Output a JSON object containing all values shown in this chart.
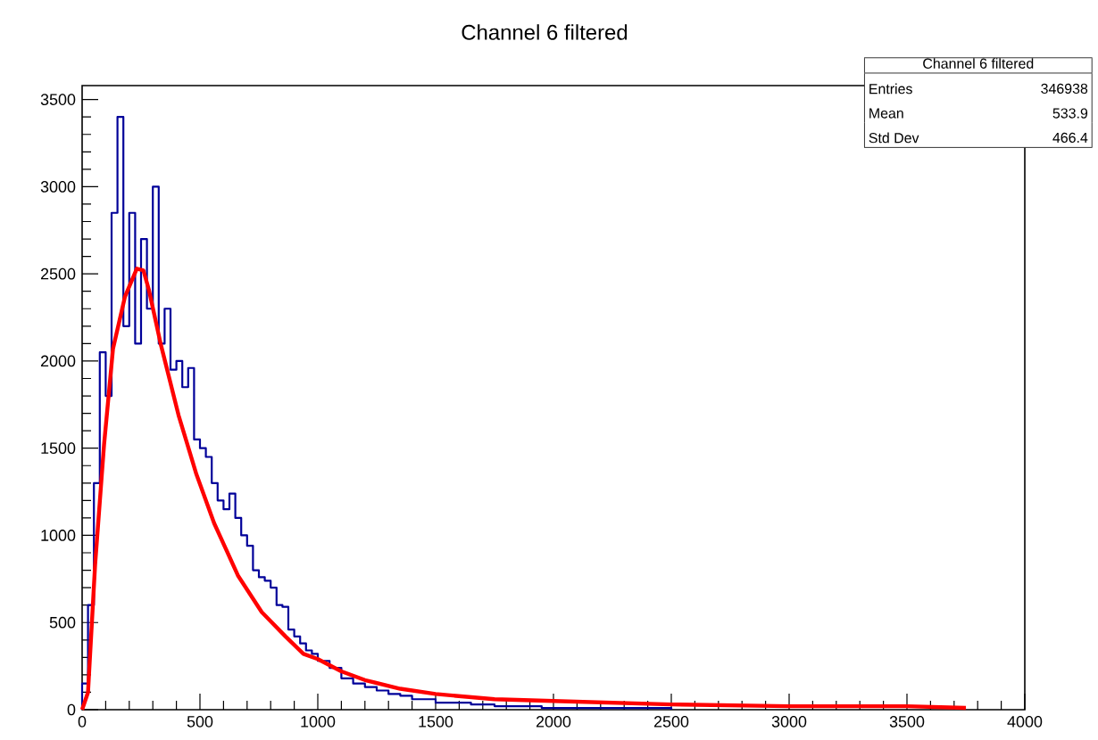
{
  "chart_data": {
    "type": "histogram",
    "title": "Channel 6 filtered",
    "annotations": [
      "Channel 6 filtered",
      "Entries",
      "346938",
      "Mean",
      "533.9",
      "Std Dev",
      "466.4"
    ],
    "series": [
      {
        "color": "#000099",
        "bins": [
          0,
          25,
          50,
          75,
          100,
          125,
          150,
          175,
          200,
          225,
          250,
          275,
          300,
          325,
          350,
          375,
          400,
          425,
          450,
          475,
          500,
          525,
          550,
          575,
          600,
          625,
          650,
          675,
          700,
          725,
          750,
          775,
          800,
          825,
          850,
          875,
          900,
          925,
          950,
          975,
          1000,
          1050,
          1100,
          1150,
          1200,
          1250,
          1300,
          1350,
          1400,
          1450,
          1500,
          1550,
          1600,
          1650,
          1700,
          1750,
          1800,
          1850,
          1900,
          1950,
          2000,
          2100,
          2200,
          2300,
          2400,
          2500
        ],
        "values": [
          150,
          600,
          1300,
          2050,
          1800,
          2850,
          3400,
          2200,
          2850,
          2100,
          2700,
          2300,
          3000,
          2100,
          2300,
          1950,
          2000,
          1850,
          1960,
          1550,
          1500,
          1450,
          1300,
          1200,
          1150,
          1240,
          1100,
          1000,
          940,
          800,
          760,
          740,
          700,
          600,
          590,
          460,
          420,
          380,
          340,
          320,
          280,
          240,
          180,
          150,
          130,
          110,
          90,
          80,
          60,
          60,
          40,
          40,
          40,
          30,
          30,
          20,
          20,
          20,
          20,
          10,
          10,
          10,
          10,
          10,
          10
        ]
      },
      {
        "type": "line",
        "color": "#ff0000",
        "x": [
          0,
          25,
          55,
          93,
          131,
          182,
          232,
          260,
          283,
          333,
          409,
          485,
          560,
          661,
          762,
          863,
          939,
          1000,
          1100,
          1200,
          1350,
          1500,
          1750,
          2000,
          2500,
          3000,
          3500,
          3750
        ],
        "values": [
          0,
          100,
          830,
          1520,
          2070,
          2370,
          2530,
          2520,
          2410,
          2100,
          1690,
          1350,
          1070,
          770,
          560,
          420,
          320,
          290,
          220,
          170,
          120,
          90,
          60,
          50,
          30,
          20,
          20,
          10
        ]
      }
    ],
    "xlim": [
      0,
      4000
    ],
    "ylim": [
      0,
      3580
    ],
    "xticks": [
      0,
      500,
      1000,
      1500,
      2000,
      2500,
      3000,
      3500,
      4000
    ],
    "yticks": [
      0,
      500,
      1000,
      1500,
      2000,
      2500,
      3000,
      3500
    ],
    "grid": false
  }
}
